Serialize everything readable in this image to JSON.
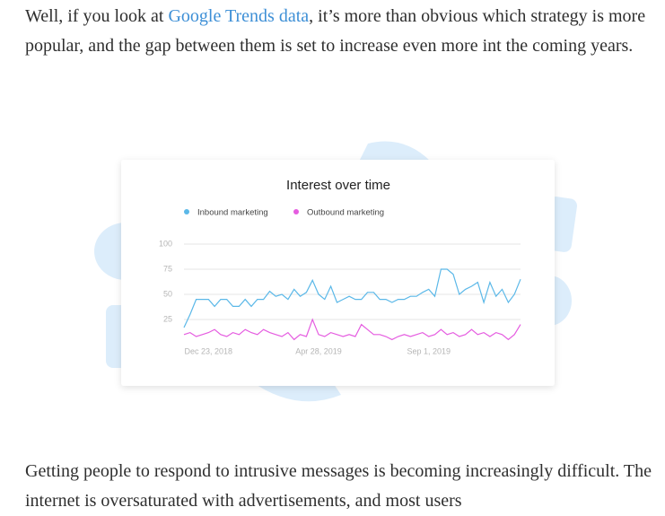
{
  "paragraph_1": {
    "before": "Well, if you look at ",
    "link": "Google Trends data",
    "after": ", it’s more than obvious which strategy is more popular, and the gap between them is set to increase even more int the coming years."
  },
  "paragraph_2": "Getting people to respond to intrusive messages is becoming increasingly difficult. The internet is oversaturated with advertisements, and most users",
  "chart_data": {
    "type": "line",
    "title": "Interest over time",
    "categories": [
      null,
      null,
      null,
      null,
      "Dec 23, 2018",
      null,
      null,
      null,
      null,
      null,
      null,
      null,
      null,
      null,
      null,
      null,
      null,
      null,
      null,
      null,
      null,
      null,
      "Apr 28, 2019",
      null,
      null,
      null,
      null,
      null,
      null,
      null,
      null,
      null,
      null,
      null,
      null,
      null,
      null,
      null,
      null,
      null,
      "Sep 1, 2019",
      null,
      null,
      null,
      null,
      null,
      null,
      null,
      null,
      null,
      null,
      null,
      null,
      null,
      null,
      null
    ],
    "series": [
      {
        "name": "Inbound marketing",
        "color": "#5bb8e8",
        "values": [
          17,
          30,
          45,
          45,
          45,
          38,
          45,
          45,
          38,
          38,
          45,
          38,
          45,
          45,
          53,
          48,
          50,
          45,
          55,
          48,
          52,
          64,
          50,
          45,
          58,
          42,
          45,
          48,
          45,
          45,
          52,
          52,
          45,
          45,
          42,
          45,
          45,
          48,
          48,
          52,
          55,
          48,
          75,
          75,
          70,
          50,
          55,
          58,
          62,
          42,
          62,
          48,
          55,
          42,
          50,
          65
        ]
      },
      {
        "name": "Outbound marketing",
        "color": "#e55ce0",
        "values": [
          10,
          12,
          8,
          10,
          12,
          15,
          10,
          8,
          12,
          10,
          15,
          12,
          10,
          15,
          12,
          10,
          8,
          12,
          5,
          10,
          8,
          25,
          10,
          8,
          12,
          10,
          8,
          10,
          8,
          20,
          15,
          10,
          10,
          8,
          5,
          8,
          10,
          8,
          10,
          12,
          8,
          10,
          15,
          10,
          12,
          8,
          10,
          15,
          10,
          12,
          8,
          12,
          10,
          5,
          10,
          20
        ]
      }
    ],
    "ylim": [
      0,
      100
    ],
    "yticks": [
      25,
      50,
      75,
      100
    ],
    "grid": true
  }
}
